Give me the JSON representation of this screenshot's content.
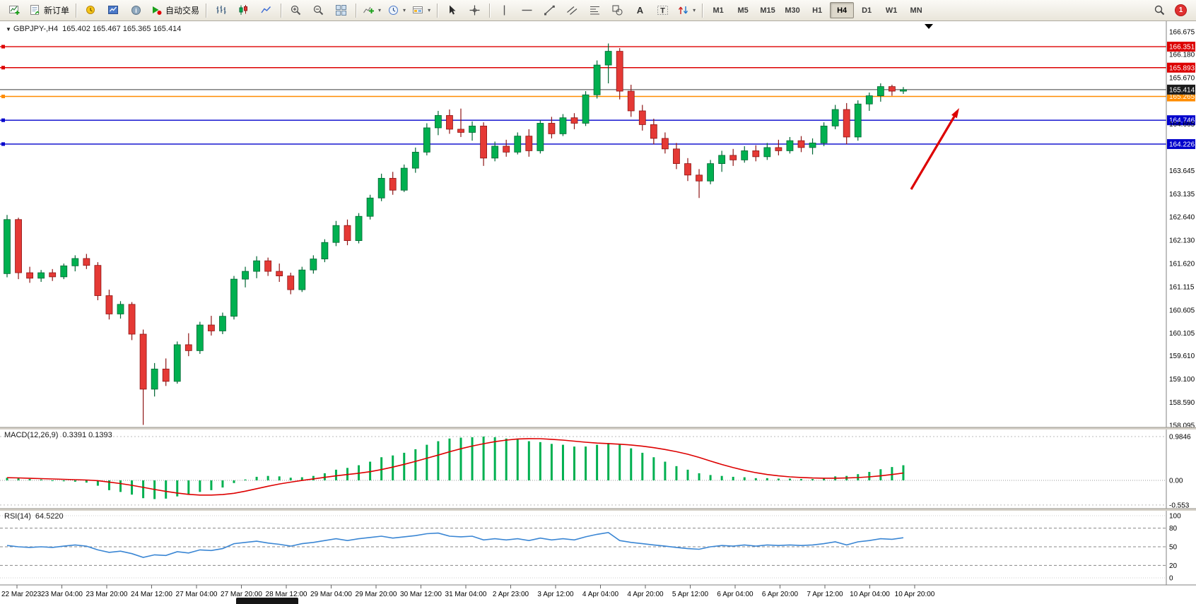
{
  "toolbar": {
    "new_order_label": "新订单",
    "auto_trading_label": "自动交易",
    "timeframes": [
      "M1",
      "M5",
      "M15",
      "M30",
      "H1",
      "H4",
      "D1",
      "W1",
      "MN"
    ],
    "active_timeframe": "H4",
    "notification_count": "1"
  },
  "chart_header": {
    "symbol_period": "GBPJPY-,H4",
    "ohlc": "165.402 165.467 165.365 165.414"
  },
  "indicators": {
    "macd_label": "MACD(12,26,9)",
    "macd_values": "0.3391 0.1393",
    "rsi_label": "RSI(14)",
    "rsi_value": "64.5220"
  },
  "chart_data": {
    "type": "candlestick",
    "symbol": "GBPJPY-",
    "timeframe": "H4",
    "y_range": [
      158.095,
      166.675
    ],
    "bid_price": 165.414,
    "up_color": "#00b050",
    "down_color": "#e53935",
    "ohlc_values": [
      [
        161.4,
        162.68,
        161.32,
        162.58
      ],
      [
        162.58,
        162.62,
        161.28,
        161.42
      ],
      [
        161.42,
        161.55,
        161.2,
        161.3
      ],
      [
        161.3,
        161.48,
        161.22,
        161.42
      ],
      [
        161.42,
        161.5,
        161.24,
        161.33
      ],
      [
        161.33,
        161.62,
        161.28,
        161.57
      ],
      [
        161.57,
        161.8,
        161.45,
        161.73
      ],
      [
        161.73,
        161.83,
        161.5,
        161.58
      ],
      [
        161.58,
        161.65,
        160.82,
        160.92
      ],
      [
        160.92,
        161.05,
        160.4,
        160.52
      ],
      [
        160.52,
        160.8,
        160.42,
        160.73
      ],
      [
        160.73,
        160.78,
        159.95,
        160.08
      ],
      [
        160.08,
        160.18,
        158.1,
        158.88
      ],
      [
        158.88,
        159.45,
        158.72,
        159.32
      ],
      [
        159.32,
        159.55,
        158.95,
        159.05
      ],
      [
        159.05,
        159.92,
        159.0,
        159.85
      ],
      [
        159.85,
        160.1,
        159.6,
        159.72
      ],
      [
        159.72,
        160.35,
        159.65,
        160.28
      ],
      [
        160.28,
        160.48,
        160.05,
        160.15
      ],
      [
        160.15,
        160.55,
        160.08,
        160.47
      ],
      [
        160.47,
        161.35,
        160.4,
        161.28
      ],
      [
        161.28,
        161.55,
        161.1,
        161.45
      ],
      [
        161.45,
        161.78,
        161.3,
        161.68
      ],
      [
        161.68,
        161.75,
        161.35,
        161.45
      ],
      [
        161.45,
        161.62,
        161.22,
        161.35
      ],
      [
        161.35,
        161.42,
        160.95,
        161.05
      ],
      [
        161.05,
        161.55,
        161.0,
        161.48
      ],
      [
        161.48,
        161.8,
        161.4,
        161.72
      ],
      [
        161.72,
        162.15,
        161.65,
        162.08
      ],
      [
        162.08,
        162.55,
        162.0,
        162.45
      ],
      [
        162.45,
        162.58,
        162.02,
        162.12
      ],
      [
        162.12,
        162.72,
        162.06,
        162.65
      ],
      [
        162.65,
        163.12,
        162.58,
        163.05
      ],
      [
        163.05,
        163.58,
        162.98,
        163.48
      ],
      [
        163.48,
        163.62,
        163.12,
        163.22
      ],
      [
        163.22,
        163.78,
        163.18,
        163.7
      ],
      [
        163.7,
        164.15,
        163.6,
        164.05
      ],
      [
        164.05,
        164.68,
        163.98,
        164.58
      ],
      [
        164.58,
        164.95,
        164.42,
        164.85
      ],
      [
        164.85,
        164.98,
        164.45,
        164.55
      ],
      [
        164.55,
        165.0,
        164.38,
        164.48
      ],
      [
        164.48,
        164.72,
        164.3,
        164.62
      ],
      [
        164.62,
        164.7,
        163.75,
        163.92
      ],
      [
        163.92,
        164.28,
        163.85,
        164.18
      ],
      [
        164.18,
        164.32,
        163.95,
        164.05
      ],
      [
        164.05,
        164.48,
        164.0,
        164.4
      ],
      [
        164.4,
        164.55,
        163.95,
        164.08
      ],
      [
        164.08,
        164.75,
        164.02,
        164.68
      ],
      [
        164.68,
        164.82,
        164.35,
        164.45
      ],
      [
        164.45,
        164.88,
        164.4,
        164.8
      ],
      [
        164.8,
        164.9,
        164.55,
        164.68
      ],
      [
        164.68,
        165.38,
        164.62,
        165.3
      ],
      [
        165.3,
        166.05,
        165.22,
        165.95
      ],
      [
        165.95,
        166.42,
        165.55,
        166.25
      ],
      [
        166.25,
        166.32,
        165.2,
        165.38
      ],
      [
        165.38,
        165.52,
        164.82,
        164.95
      ],
      [
        164.95,
        165.08,
        164.52,
        164.65
      ],
      [
        164.65,
        164.78,
        164.22,
        164.35
      ],
      [
        164.35,
        164.48,
        164.02,
        164.12
      ],
      [
        164.12,
        164.25,
        163.68,
        163.8
      ],
      [
        163.8,
        163.92,
        163.42,
        163.55
      ],
      [
        163.55,
        163.68,
        163.05,
        163.42
      ],
      [
        163.42,
        163.88,
        163.35,
        163.8
      ],
      [
        163.8,
        164.08,
        163.62,
        163.98
      ],
      [
        163.98,
        164.12,
        163.75,
        163.88
      ],
      [
        163.88,
        164.18,
        163.82,
        164.08
      ],
      [
        164.08,
        164.2,
        163.85,
        163.95
      ],
      [
        163.95,
        164.25,
        163.88,
        164.15
      ],
      [
        164.15,
        164.32,
        163.98,
        164.08
      ],
      [
        164.08,
        164.38,
        164.02,
        164.3
      ],
      [
        164.3,
        164.4,
        164.05,
        164.15
      ],
      [
        164.15,
        164.35,
        164.0,
        164.25
      ],
      [
        164.25,
        164.7,
        164.18,
        164.62
      ],
      [
        164.62,
        165.08,
        164.55,
        164.98
      ],
      [
        164.98,
        165.12,
        164.22,
        164.38
      ],
      [
        164.38,
        165.18,
        164.3,
        165.1
      ],
      [
        165.1,
        165.35,
        164.95,
        165.28
      ],
      [
        165.28,
        165.55,
        165.15,
        165.48
      ],
      [
        165.48,
        165.52,
        165.28,
        165.38
      ],
      [
        165.38,
        165.47,
        165.32,
        165.414
      ]
    ],
    "price_axis_ticks": [
      166.675,
      166.18,
      165.67,
      164.665,
      163.645,
      163.135,
      162.64,
      162.13,
      161.62,
      161.115,
      160.605,
      160.105,
      159.61,
      159.1,
      158.59,
      158.095
    ],
    "horizontal_lines": [
      {
        "price": 166.351,
        "color": "#dd0000"
      },
      {
        "price": 165.893,
        "color": "#dd0000"
      },
      {
        "price": 165.265,
        "color": "#ff8c00"
      },
      {
        "price": 164.746,
        "color": "#0000cc"
      },
      {
        "price": 164.226,
        "color": "#0000cc"
      }
    ],
    "time_labels": [
      "22 Mar 2023",
      "23 Mar 04:00",
      "23 Mar 20:00",
      "24 Mar 12:00",
      "27 Mar 04:00",
      "27 Mar 20:00",
      "28 Mar 12:00",
      "29 Mar 04:00",
      "29 Mar 20:00",
      "30 Mar 12:00",
      "31 Mar 04:00",
      "2 Apr 23:00",
      "3 Apr 12:00",
      "4 Apr 04:00",
      "4 Apr 20:00",
      "5 Apr 12:00",
      "6 Apr 04:00",
      "6 Apr 20:00",
      "7 Apr 12:00",
      "10 Apr 04:00",
      "10 Apr 20:00"
    ],
    "macd": {
      "params": "12,26,9",
      "axis_tick_labels": [
        "0.9846",
        "0.00",
        "-0.553"
      ],
      "axis_tick_values": [
        0.9846,
        0,
        -0.553
      ],
      "signal_period": 9,
      "color_histogram": "#00b050",
      "color_signal": "#dd0000",
      "histogram": [
        0.06,
        0.05,
        0.03,
        0.02,
        0.0,
        -0.02,
        -0.03,
        -0.05,
        -0.12,
        -0.22,
        -0.26,
        -0.32,
        -0.4,
        -0.42,
        -0.41,
        -0.36,
        -0.32,
        -0.26,
        -0.22,
        -0.16,
        -0.06,
        0.02,
        0.08,
        0.1,
        0.09,
        0.06,
        0.07,
        0.1,
        0.16,
        0.24,
        0.28,
        0.34,
        0.42,
        0.52,
        0.56,
        0.62,
        0.7,
        0.8,
        0.88,
        0.94,
        0.96,
        0.97,
        0.985,
        0.97,
        0.94,
        0.92,
        0.88,
        0.86,
        0.82,
        0.8,
        0.76,
        0.76,
        0.8,
        0.84,
        0.8,
        0.72,
        0.62,
        0.52,
        0.42,
        0.32,
        0.24,
        0.16,
        0.12,
        0.1,
        0.08,
        0.07,
        0.05,
        0.05,
        0.04,
        0.04,
        0.03,
        0.03,
        0.05,
        0.09,
        0.1,
        0.14,
        0.19,
        0.25,
        0.3,
        0.34
      ]
    },
    "rsi": {
      "period": 14,
      "levels": [
        "100",
        "80",
        "50",
        "20",
        "0"
      ],
      "level_values": [
        100,
        80,
        50,
        20,
        0
      ],
      "color": "#3a86d4",
      "values": [
        52,
        50,
        49,
        50,
        49,
        51,
        53,
        51,
        45,
        41,
        43,
        39,
        33,
        37,
        36,
        42,
        40,
        45,
        44,
        47,
        55,
        57,
        59,
        56,
        54,
        51,
        55,
        57,
        60,
        63,
        60,
        63,
        65,
        67,
        64,
        66,
        68,
        71,
        72,
        67,
        66,
        67,
        61,
        63,
        61,
        63,
        60,
        64,
        61,
        63,
        61,
        66,
        70,
        73,
        60,
        57,
        55,
        53,
        51,
        49,
        47,
        46,
        50,
        52,
        51,
        53,
        51,
        53,
        52,
        53,
        52,
        53,
        55,
        58,
        53,
        58,
        60,
        63,
        62,
        64.52
      ]
    },
    "annotation": {
      "type": "arrow",
      "color": "#dd0000",
      "direction": "up-right"
    }
  }
}
